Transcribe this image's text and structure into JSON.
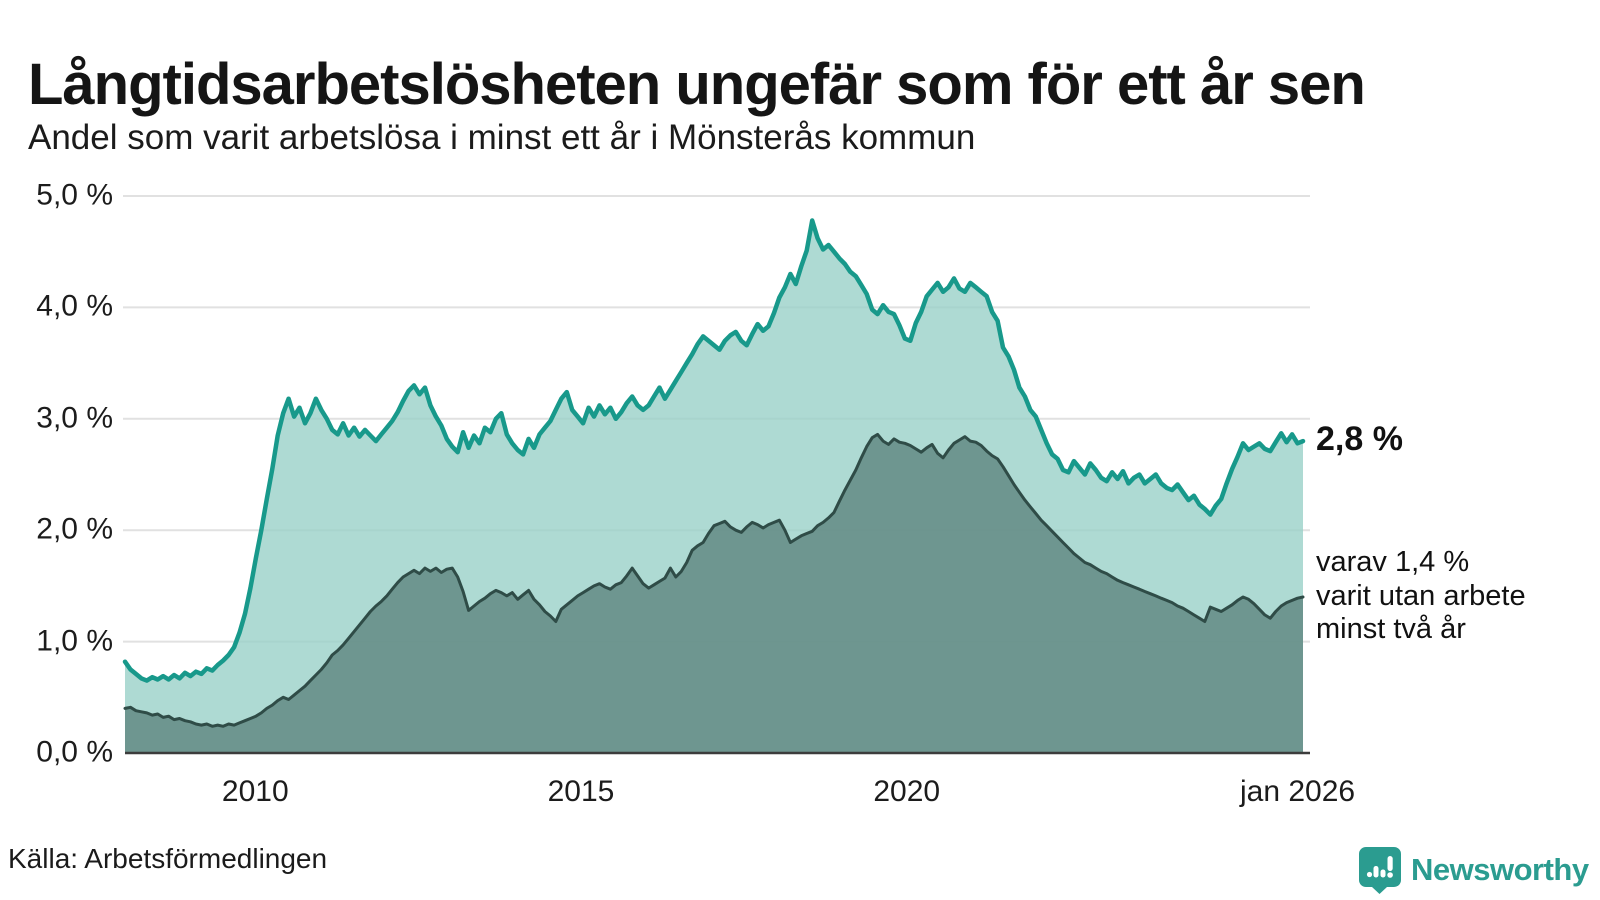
{
  "header": {
    "title": "Långtidsarbetslösheten ungefär som för ett år sen",
    "subtitle": "Andel som varit arbetslösa i minst ett år i Mönsterås kommun"
  },
  "chart_data": {
    "type": "area",
    "title": "Långtidsarbetslösheten ungefär som för ett år sen",
    "subtitle": "Andel som varit arbetslösa i minst ett år i Mönsterås kommun",
    "x_unit": "month",
    "x_start_year": 2008.0,
    "x_end_year": 2026.0833,
    "ylim": [
      0,
      5
    ],
    "grid": true,
    "y_ticks": [
      {
        "value": 5.0,
        "label": "5,0 %"
      },
      {
        "value": 4.0,
        "label": "4,0 %"
      },
      {
        "value": 3.0,
        "label": "3,0 %"
      },
      {
        "value": 2.0,
        "label": "2,0 %"
      },
      {
        "value": 1.0,
        "label": "1,0 %"
      },
      {
        "value": 0.0,
        "label": "0,0 %"
      }
    ],
    "x_ticks": [
      {
        "pos": 2010.0,
        "label": "2010"
      },
      {
        "pos": 2015.0,
        "label": "2015"
      },
      {
        "pos": 2020.0,
        "label": "2020"
      },
      {
        "pos": 2026.0,
        "label": "jan 2026"
      }
    ],
    "series": [
      {
        "name": "Arbetslösa minst ett år",
        "end_value": "2,8 %",
        "end_label": "2,8 %",
        "line_color": "#18998b",
        "fill_color": "rgba(154,209,200,0.8)",
        "line_width": 4.5,
        "values": [
          0.82,
          0.75,
          0.71,
          0.67,
          0.65,
          0.68,
          0.66,
          0.69,
          0.66,
          0.7,
          0.67,
          0.72,
          0.69,
          0.73,
          0.71,
          0.76,
          0.74,
          0.79,
          0.83,
          0.88,
          0.95,
          1.08,
          1.25,
          1.48,
          1.75,
          2.0,
          2.28,
          2.55,
          2.85,
          3.05,
          3.18,
          3.02,
          3.1,
          2.96,
          3.05,
          3.18,
          3.08,
          3.0,
          2.9,
          2.86,
          2.96,
          2.85,
          2.92,
          2.84,
          2.9,
          2.85,
          2.8,
          2.86,
          2.92,
          2.98,
          3.06,
          3.16,
          3.25,
          3.3,
          3.22,
          3.28,
          3.12,
          3.02,
          2.94,
          2.82,
          2.75,
          2.7,
          2.88,
          2.74,
          2.85,
          2.78,
          2.92,
          2.88,
          3.0,
          3.05,
          2.86,
          2.78,
          2.72,
          2.68,
          2.82,
          2.74,
          2.86,
          2.92,
          2.98,
          3.08,
          3.18,
          3.24,
          3.08,
          3.02,
          2.96,
          3.1,
          3.02,
          3.12,
          3.04,
          3.1,
          3.0,
          3.06,
          3.14,
          3.2,
          3.12,
          3.08,
          3.12,
          3.2,
          3.28,
          3.18,
          3.26,
          3.34,
          3.42,
          3.5,
          3.58,
          3.67,
          3.74,
          3.7,
          3.66,
          3.62,
          3.7,
          3.75,
          3.78,
          3.7,
          3.66,
          3.76,
          3.85,
          3.79,
          3.83,
          3.95,
          4.09,
          4.18,
          4.3,
          4.21,
          4.37,
          4.51,
          4.78,
          4.62,
          4.52,
          4.56,
          4.5,
          4.44,
          4.39,
          4.32,
          4.28,
          4.2,
          4.12,
          3.98,
          3.94,
          4.02,
          3.96,
          3.94,
          3.84,
          3.72,
          3.7,
          3.86,
          3.96,
          4.1,
          4.16,
          4.22,
          4.14,
          4.18,
          4.26,
          4.17,
          4.14,
          4.22,
          4.18,
          4.14,
          4.1,
          3.96,
          3.88,
          3.64,
          3.56,
          3.44,
          3.28,
          3.2,
          3.08,
          3.02,
          2.9,
          2.78,
          2.68,
          2.64,
          2.54,
          2.52,
          2.62,
          2.56,
          2.5,
          2.6,
          2.54,
          2.47,
          2.44,
          2.52,
          2.46,
          2.53,
          2.42,
          2.47,
          2.5,
          2.42,
          2.46,
          2.5,
          2.42,
          2.38,
          2.36,
          2.41,
          2.34,
          2.27,
          2.31,
          2.23,
          2.19,
          2.14,
          2.22,
          2.28,
          2.42,
          2.55,
          2.66,
          2.78,
          2.72,
          2.75,
          2.78,
          2.73,
          2.71,
          2.79,
          2.87,
          2.79,
          2.86,
          2.78,
          2.8
        ]
      },
      {
        "name": "Varav utan arbete minst två år",
        "end_value": "1,4 %",
        "end_label": "varav 1,4 %\nvarit utan arbete\nminst två år",
        "line_color": "#2f4c47",
        "fill_color": "rgba(99,138,132,0.85)",
        "line_width": 3,
        "values": [
          0.4,
          0.41,
          0.38,
          0.37,
          0.36,
          0.34,
          0.35,
          0.32,
          0.33,
          0.3,
          0.31,
          0.29,
          0.28,
          0.26,
          0.25,
          0.26,
          0.24,
          0.25,
          0.24,
          0.26,
          0.25,
          0.27,
          0.29,
          0.31,
          0.33,
          0.36,
          0.4,
          0.43,
          0.47,
          0.5,
          0.48,
          0.52,
          0.56,
          0.6,
          0.65,
          0.7,
          0.75,
          0.81,
          0.88,
          0.92,
          0.97,
          1.03,
          1.09,
          1.15,
          1.21,
          1.27,
          1.32,
          1.36,
          1.41,
          1.47,
          1.53,
          1.58,
          1.61,
          1.64,
          1.61,
          1.66,
          1.63,
          1.66,
          1.62,
          1.65,
          1.66,
          1.58,
          1.45,
          1.28,
          1.32,
          1.36,
          1.39,
          1.43,
          1.46,
          1.44,
          1.41,
          1.44,
          1.38,
          1.42,
          1.46,
          1.38,
          1.33,
          1.27,
          1.23,
          1.18,
          1.29,
          1.33,
          1.37,
          1.41,
          1.44,
          1.47,
          1.5,
          1.52,
          1.49,
          1.47,
          1.51,
          1.53,
          1.59,
          1.66,
          1.59,
          1.52,
          1.48,
          1.51,
          1.54,
          1.57,
          1.66,
          1.58,
          1.63,
          1.71,
          1.82,
          1.86,
          1.89,
          1.97,
          2.04,
          2.06,
          2.08,
          2.03,
          2.0,
          1.98,
          2.03,
          2.07,
          2.05,
          2.02,
          2.05,
          2.07,
          2.09,
          2.0,
          1.89,
          1.92,
          1.95,
          1.97,
          1.99,
          2.04,
          2.07,
          2.11,
          2.16,
          2.26,
          2.36,
          2.45,
          2.54,
          2.65,
          2.75,
          2.83,
          2.86,
          2.8,
          2.77,
          2.82,
          2.79,
          2.78,
          2.76,
          2.73,
          2.7,
          2.74,
          2.77,
          2.69,
          2.65,
          2.72,
          2.78,
          2.81,
          2.84,
          2.8,
          2.79,
          2.76,
          2.71,
          2.67,
          2.64,
          2.57,
          2.49,
          2.41,
          2.34,
          2.27,
          2.21,
          2.15,
          2.09,
          2.04,
          1.99,
          1.94,
          1.89,
          1.84,
          1.79,
          1.75,
          1.71,
          1.69,
          1.66,
          1.63,
          1.61,
          1.58,
          1.55,
          1.53,
          1.51,
          1.49,
          1.47,
          1.45,
          1.43,
          1.41,
          1.39,
          1.37,
          1.35,
          1.32,
          1.3,
          1.27,
          1.24,
          1.21,
          1.18,
          1.31,
          1.29,
          1.27,
          1.3,
          1.33,
          1.37,
          1.4,
          1.38,
          1.34,
          1.29,
          1.24,
          1.21,
          1.27,
          1.32,
          1.35,
          1.37,
          1.39,
          1.4
        ]
      }
    ],
    "colors": {
      "accent_teal": "#18998b",
      "dark_green": "#2f4c47",
      "grid": "#e1e1e1",
      "axis": "#3c3c3c",
      "brand_teal": "#2b9c90"
    }
  },
  "footer": {
    "source": "Källa: Arbetsförmedlingen",
    "brand": "Newsworthy"
  }
}
